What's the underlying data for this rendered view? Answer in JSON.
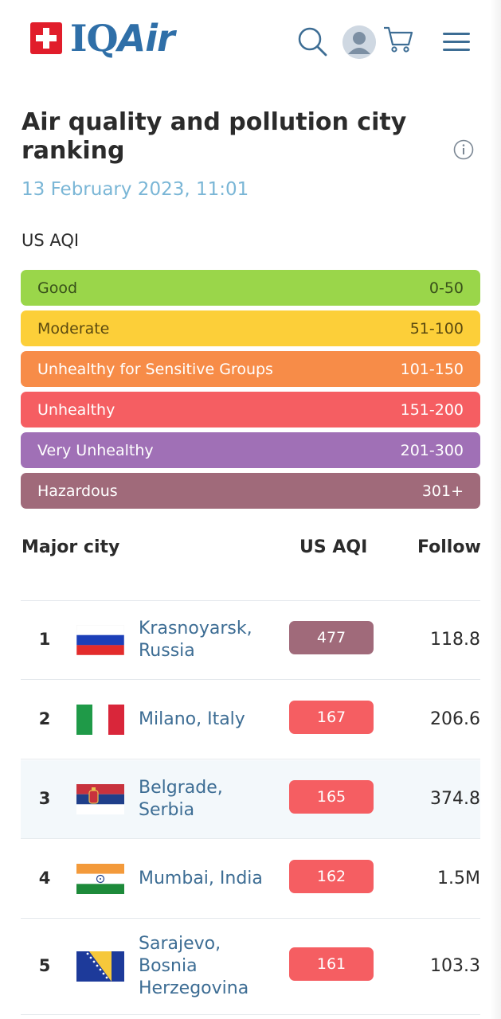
{
  "header": {
    "brand_text": "IQAir",
    "icons": [
      "search-icon",
      "avatar",
      "cart-icon",
      "menu-icon"
    ]
  },
  "page": {
    "title": "Air quality and pollution city ranking",
    "datetime": "13 February 2023, 11:01",
    "aqi_label": "US AQI"
  },
  "legend": [
    {
      "label": "Good",
      "range": "0-50",
      "color": "#9ad64a"
    },
    {
      "label": "Moderate",
      "range": "51-100",
      "color": "#fccf39"
    },
    {
      "label": "Unhealthy for Sensitive Groups",
      "range": "101-150",
      "color": "#f78c48"
    },
    {
      "label": "Unhealthy",
      "range": "151-200",
      "color": "#f55e62"
    },
    {
      "label": "Very Unhealthy",
      "range": "201-300",
      "color": "#a070b6"
    },
    {
      "label": "Hazardous",
      "range": "301+",
      "color": "#a06a7a"
    }
  ],
  "table": {
    "headers": {
      "city": "Major city",
      "aqi": "US AQI",
      "followers": "Followe"
    },
    "rows": [
      {
        "rank": "1",
        "city_line1": "Krasnoyarsk,",
        "city_line2": "Russia",
        "city_line3": "",
        "aqi": "477",
        "followers": "118.8",
        "flag": "russia"
      },
      {
        "rank": "2",
        "city_line1": "Milano, Italy",
        "city_line2": "",
        "city_line3": "",
        "aqi": "167",
        "followers": "206.6",
        "flag": "italy"
      },
      {
        "rank": "3",
        "city_line1": "Belgrade,",
        "city_line2": "Serbia",
        "city_line3": "",
        "aqi": "165",
        "followers": "374.8",
        "flag": "serbia"
      },
      {
        "rank": "4",
        "city_line1": "Mumbai, India",
        "city_line2": "",
        "city_line3": "",
        "aqi": "162",
        "followers": "1.5M",
        "flag": "india"
      },
      {
        "rank": "5",
        "city_line1": "Sarajevo,",
        "city_line2": "Bosnia",
        "city_line3": "Herzegovina",
        "aqi": "161",
        "followers": "103.3",
        "flag": "bosnia"
      }
    ]
  }
}
